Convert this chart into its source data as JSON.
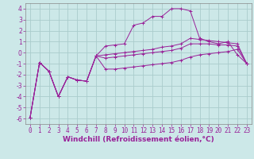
{
  "xlabel": "Windchill (Refroidissement éolien,°C)",
  "xlim": [
    -0.5,
    23.5
  ],
  "ylim": [
    -6.5,
    4.5
  ],
  "xticks": [
    0,
    1,
    2,
    3,
    4,
    5,
    6,
    7,
    8,
    9,
    10,
    11,
    12,
    13,
    14,
    15,
    16,
    17,
    18,
    19,
    20,
    21,
    22,
    23
  ],
  "yticks": [
    -6,
    -5,
    -4,
    -3,
    -2,
    -1,
    0,
    1,
    2,
    3,
    4
  ],
  "bg_color": "#cce8e8",
  "grid_color": "#aacccc",
  "line_color": "#992299",
  "line1_x": [
    0,
    1,
    2,
    3,
    4,
    5,
    6,
    7,
    8,
    9,
    10,
    11,
    12,
    13,
    14,
    15,
    16,
    17,
    18,
    19,
    20,
    21,
    22,
    23
  ],
  "line1_y": [
    -5.9,
    -0.9,
    -1.7,
    -4.0,
    -2.2,
    -2.5,
    -2.6,
    -0.3,
    0.6,
    0.7,
    0.8,
    2.5,
    2.7,
    3.3,
    3.3,
    4.0,
    4.0,
    3.8,
    1.3,
    1.0,
    0.8,
    1.0,
    -0.2,
    -1.0
  ],
  "line2_x": [
    0,
    1,
    2,
    3,
    4,
    5,
    6,
    7,
    8,
    9,
    10,
    11,
    12,
    13,
    14,
    15,
    16,
    17,
    18,
    19,
    20,
    21,
    22,
    23
  ],
  "line2_y": [
    -5.9,
    -0.9,
    -1.7,
    -4.0,
    -2.2,
    -2.5,
    -2.6,
    -0.3,
    -0.2,
    -0.1,
    0.0,
    0.1,
    0.2,
    0.3,
    0.5,
    0.6,
    0.8,
    1.3,
    1.2,
    1.1,
    1.0,
    0.9,
    0.8,
    -1.0
  ],
  "line3_x": [
    0,
    1,
    2,
    3,
    4,
    5,
    6,
    7,
    8,
    9,
    10,
    11,
    12,
    13,
    14,
    15,
    16,
    17,
    18,
    19,
    20,
    21,
    22,
    23
  ],
  "line3_y": [
    -5.9,
    -0.9,
    -1.7,
    -4.0,
    -2.2,
    -2.5,
    -2.6,
    -0.3,
    -0.5,
    -0.4,
    -0.3,
    -0.2,
    -0.1,
    0.0,
    0.1,
    0.2,
    0.4,
    0.8,
    0.8,
    0.8,
    0.7,
    0.7,
    0.6,
    -1.0
  ],
  "line4_x": [
    0,
    1,
    2,
    3,
    4,
    5,
    6,
    7,
    8,
    9,
    10,
    11,
    12,
    13,
    14,
    15,
    16,
    17,
    18,
    19,
    20,
    21,
    22,
    23
  ],
  "line4_y": [
    -5.9,
    -0.9,
    -1.7,
    -4.0,
    -2.2,
    -2.5,
    -2.6,
    -0.3,
    -1.5,
    -1.5,
    -1.4,
    -1.3,
    -1.2,
    -1.1,
    -1.0,
    -0.9,
    -0.7,
    -0.4,
    -0.2,
    -0.1,
    0.0,
    0.1,
    0.3,
    -1.0
  ],
  "tick_fontsize": 5.5,
  "label_fontsize": 6.5
}
